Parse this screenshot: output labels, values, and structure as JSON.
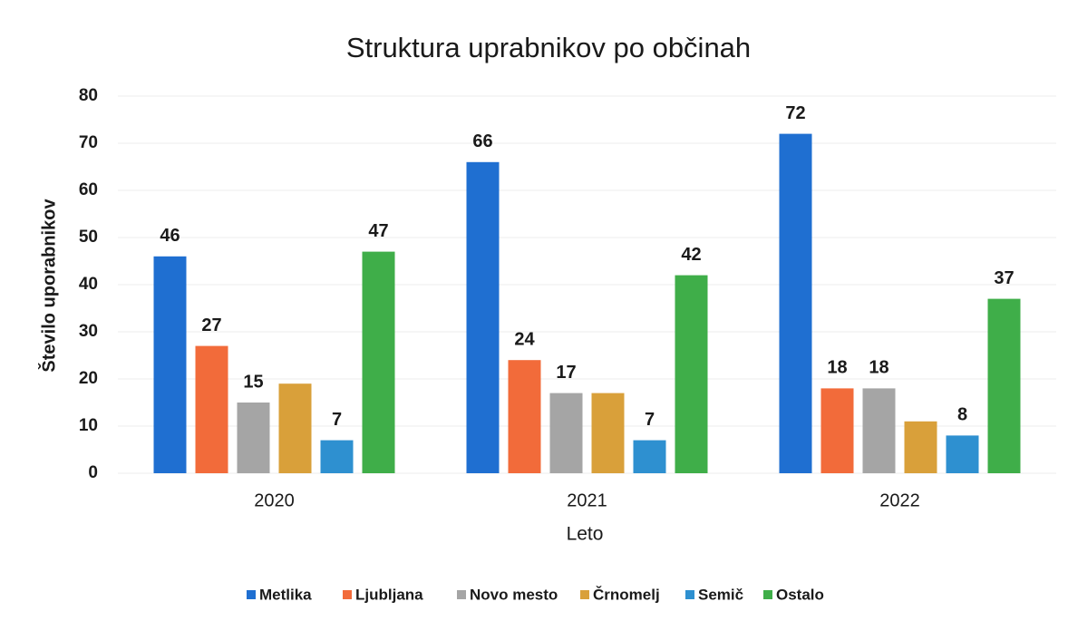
{
  "chart_data": {
    "type": "bar",
    "title": "Struktura uprabnikov po občinah",
    "x_label": "Leto",
    "y_label": "Število uporabnikov",
    "categories": [
      "2020",
      "2021",
      "2022"
    ],
    "series": [
      {
        "name": "Metlika",
        "color": "#1f6fd1",
        "values": [
          46,
          66,
          72
        ]
      },
      {
        "name": "Ljubljana",
        "color": "#f26b3a",
        "values": [
          27,
          24,
          18
        ]
      },
      {
        "name": "Novo mesto",
        "color": "#a5a5a5",
        "values": [
          15,
          17,
          18
        ]
      },
      {
        "name": "Črnomelj",
        "color": "#d9a03a",
        "values": [
          19,
          17,
          11
        ],
        "data_labels": false
      },
      {
        "name": "Semič",
        "color": "#2e90d0",
        "values": [
          7,
          7,
          8
        ]
      },
      {
        "name": "Ostalo",
        "color": "#3fae49",
        "values": [
          47,
          42,
          37
        ]
      }
    ],
    "ylim": [
      0,
      80
    ],
    "yticks": [
      0,
      10,
      20,
      30,
      40,
      50,
      60,
      70,
      80
    ],
    "grid": true,
    "legend": "bottom"
  }
}
